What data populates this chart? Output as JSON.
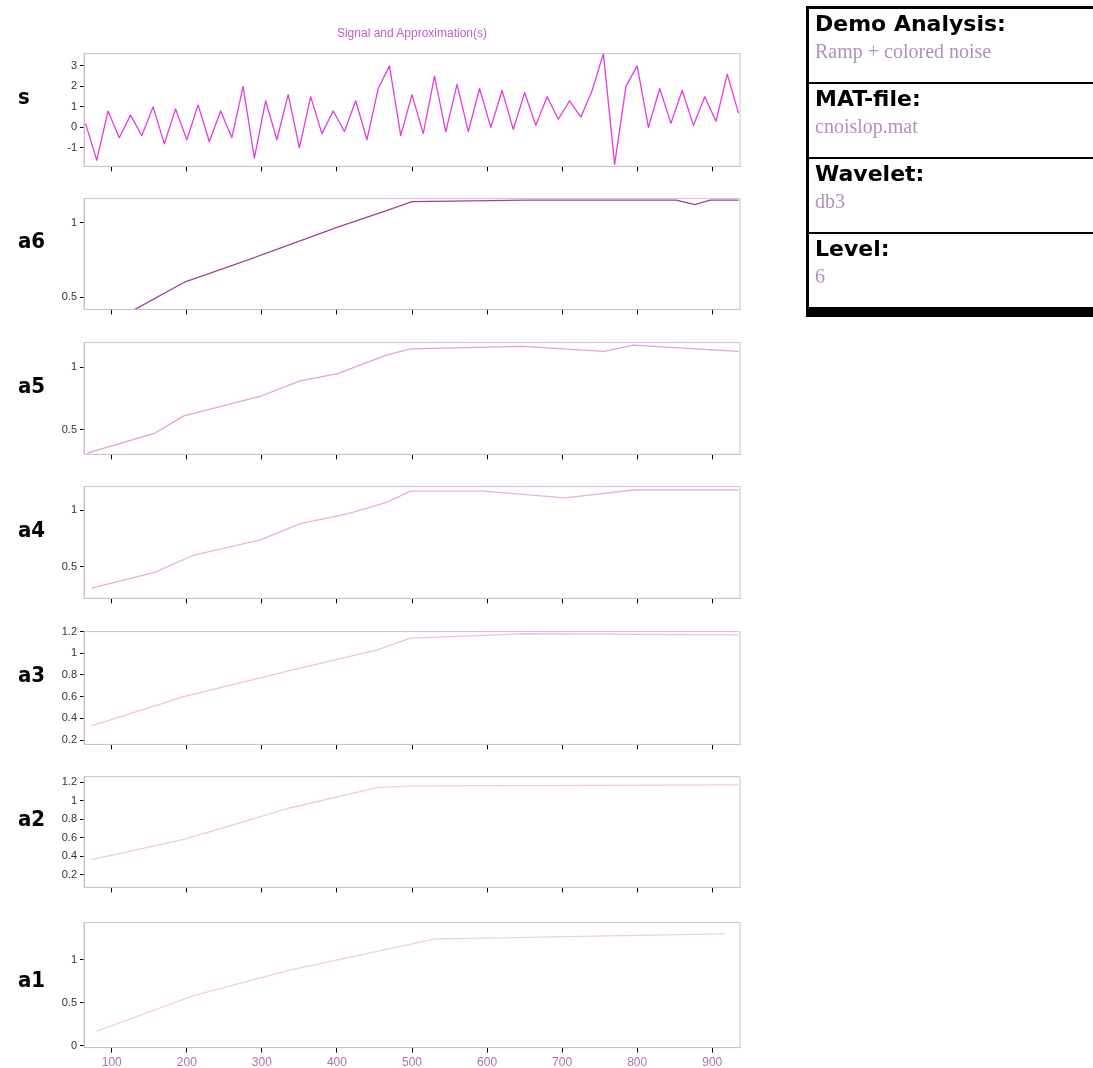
{
  "chart_data": [
    {
      "type": "line",
      "title": "Signal and Approximation(s)",
      "ylabel": "s",
      "color": "#e23de0",
      "xlim": [
        63,
        937
      ],
      "ylim": [
        -1.9,
        3.6
      ],
      "xticks": [
        100,
        200,
        300,
        400,
        500,
        600,
        700,
        800,
        900
      ],
      "yticks": [
        -1,
        0,
        1,
        2,
        3
      ],
      "tick_labels": "y",
      "x": [
        65,
        80,
        95,
        110,
        125,
        140,
        155,
        170,
        185,
        200,
        215,
        230,
        245,
        260,
        275,
        290,
        305,
        320,
        335,
        350,
        365,
        380,
        395,
        410,
        425,
        440,
        455,
        470,
        485,
        500,
        515,
        530,
        545,
        560,
        575,
        590,
        605,
        620,
        635,
        650,
        665,
        680,
        695,
        710,
        725,
        740,
        755,
        770,
        785,
        800,
        815,
        830,
        845,
        860,
        875,
        890,
        905,
        920,
        935
      ],
      "values": [
        0.2,
        -1.6,
        0.8,
        -0.5,
        0.6,
        -0.4,
        1.0,
        -0.8,
        0.9,
        -0.6,
        1.1,
        -0.7,
        0.8,
        -0.5,
        2.0,
        -1.5,
        1.3,
        -0.6,
        1.6,
        -1.0,
        1.5,
        -0.3,
        0.8,
        -0.2,
        1.3,
        -0.6,
        1.9,
        3.0,
        -0.4,
        1.6,
        -0.3,
        2.5,
        -0.2,
        2.1,
        -0.2,
        1.9,
        0.0,
        1.8,
        -0.1,
        1.7,
        0.1,
        1.5,
        0.4,
        1.3,
        0.5,
        1.8,
        3.6,
        -1.8,
        2.0,
        3.0,
        0.0,
        1.9,
        0.2,
        1.8,
        0.1,
        1.5,
        0.3,
        2.6,
        0.7
      ]
    },
    {
      "type": "line",
      "ylabel": "a6",
      "color": "#a0409a",
      "xlim": [
        63,
        937
      ],
      "ylim": [
        0.42,
        1.16
      ],
      "xticks": [
        100,
        200,
        300,
        400,
        500,
        600,
        700,
        800,
        900
      ],
      "yticks": [
        0.5,
        1
      ],
      "tick_labels": "y",
      "x": [
        131,
        196,
        292,
        401,
        466,
        500,
        650,
        800,
        852,
        877,
        897,
        935
      ],
      "values": [
        0.42,
        0.6,
        0.77,
        0.97,
        1.08,
        1.14,
        1.15,
        1.15,
        1.15,
        1.12,
        1.15,
        1.15
      ]
    },
    {
      "type": "line",
      "ylabel": "a5",
      "color": "#e6a0d8",
      "xlim": [
        63,
        937
      ],
      "ylim": [
        0.3,
        1.2
      ],
      "xticks": [
        100,
        200,
        300,
        400,
        500,
        600,
        700,
        800,
        900
      ],
      "yticks": [
        0.5,
        1
      ],
      "tick_labels": "y",
      "x": [
        67,
        157,
        196,
        299,
        350,
        401,
        466,
        498,
        647,
        756,
        795,
        935
      ],
      "values": [
        0.31,
        0.47,
        0.61,
        0.77,
        0.89,
        0.95,
        1.1,
        1.15,
        1.17,
        1.13,
        1.18,
        1.13
      ]
    },
    {
      "type": "line",
      "ylabel": "a4",
      "color": "#eab0e0",
      "xlim": [
        63,
        937
      ],
      "ylim": [
        0.22,
        1.21
      ],
      "xticks": [
        100,
        200,
        300,
        400,
        500,
        600,
        700,
        800,
        900
      ],
      "yticks": [
        0.5,
        1
      ],
      "tick_labels": "y",
      "x": [
        73,
        157,
        208,
        299,
        350,
        415,
        466,
        498,
        595,
        704,
        795,
        935
      ],
      "values": [
        0.31,
        0.45,
        0.6,
        0.74,
        0.88,
        0.97,
        1.07,
        1.17,
        1.17,
        1.11,
        1.18,
        1.18
      ]
    },
    {
      "type": "line",
      "ylabel": "a3",
      "color": "#f0c0e8",
      "xlim": [
        63,
        937
      ],
      "ylim": [
        0.16,
        1.2
      ],
      "xticks": [
        100,
        200,
        300,
        400,
        500,
        600,
        700,
        800,
        900
      ],
      "yticks": [
        0.2,
        0.4,
        0.6,
        0.8,
        1,
        1.2
      ],
      "tick_labels": "y",
      "x": [
        73,
        196,
        337,
        453,
        498,
        650,
        935
      ],
      "values": [
        0.33,
        0.6,
        0.84,
        1.03,
        1.14,
        1.18,
        1.17
      ]
    },
    {
      "type": "line",
      "ylabel": "a2",
      "color": "#f0c8ec",
      "xlim": [
        63,
        937
      ],
      "ylim": [
        0.06,
        1.26
      ],
      "xticks": [
        100,
        200,
        300,
        400,
        500,
        600,
        700,
        800,
        900
      ],
      "yticks": [
        0.2,
        0.4,
        0.6,
        0.8,
        1,
        1.2
      ],
      "tick_labels": "y",
      "x": [
        73,
        196,
        337,
        453,
        498,
        935
      ],
      "values": [
        0.36,
        0.58,
        0.92,
        1.14,
        1.16,
        1.17
      ]
    },
    {
      "type": "line",
      "ylabel": "a1",
      "color": "#f2ccee",
      "xlim": [
        63,
        937
      ],
      "ylim": [
        -0.02,
        1.43
      ],
      "xticks": [
        100,
        200,
        300,
        400,
        500,
        600,
        700,
        800,
        900
      ],
      "yticks": [
        0,
        0.5,
        1
      ],
      "x": [
        80,
        208,
        337,
        466,
        531,
        917
      ],
      "values": [
        0.17,
        0.58,
        0.88,
        1.12,
        1.24,
        1.3
      ]
    },
    {
      "type": "other",
      "annotations": [
        "Demo Analysis:",
        "Ramp + colored noise",
        "MAT-file:",
        "cnoislop.mat",
        "Wavelet:",
        "db3",
        "Level:",
        "6"
      ]
    }
  ]
}
